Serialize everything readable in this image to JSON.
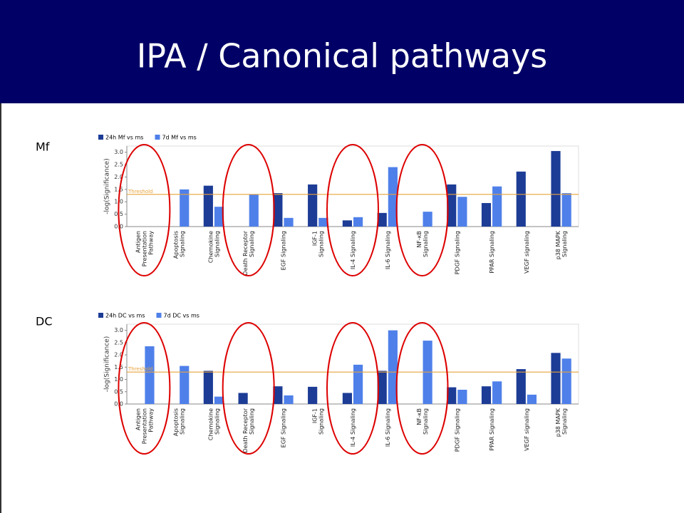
{
  "header": {
    "title": "IPA / Canonical pathways"
  },
  "chart_data": [
    {
      "type": "bar",
      "section_label": "Mf",
      "ylabel": "-log(Significance)",
      "categories": [
        "Antigen Presentation Pathway",
        "Apoptosis Signaling",
        "Chemokine Signaling",
        "Death Receptor Signaling",
        "EGF Signaling",
        "IGF-1 Signaling",
        "IL-4 Signaling",
        "IL-6 Signaling",
        "NF-κB Signaling",
        "PDGF Signaling",
        "PPAR Signaling",
        "VEGF signaling",
        "p38 MAPK Signaling"
      ],
      "series": [
        {
          "name": "24h Mf vs ms",
          "color": "#1c3c96",
          "values": [
            null,
            null,
            1.65,
            null,
            1.35,
            1.7,
            0.25,
            0.55,
            null,
            1.7,
            0.95,
            2.22,
            3.05
          ]
        },
        {
          "name": "7d Mf vs ms",
          "color": "#4f80ea",
          "values": [
            null,
            1.5,
            0.8,
            1.3,
            0.35,
            0.35,
            0.38,
            2.4,
            0.6,
            1.2,
            1.62,
            null,
            1.35
          ]
        }
      ],
      "threshold": 1.3,
      "threshold_label": "Threshold",
      "ylim": [
        0,
        3.25
      ],
      "yticks": [
        {
          "value": 0,
          "label": "0.0"
        },
        0.5,
        {
          "value": 1,
          "label": "1.0"
        },
        1.5,
        {
          "value": 2,
          "label": "2.0"
        },
        2.5,
        {
          "value": 3,
          "label": "3.0"
        }
      ],
      "grid": false
    },
    {
      "type": "bar",
      "section_label": "DC",
      "ylabel": "-log(Significance)",
      "categories": [
        "Antigen Presentation Pathway",
        "Apoptosis Signaling",
        "Chemokine Signaling",
        "Death Receptor Signaling",
        "EGF Signaling",
        "IGF-1 Signaling",
        "IL-4 Signaling",
        "IL-6 Signaling",
        "NF-κB Signaling",
        "PDGF Signaling",
        "PPAR Signaling",
        "VEGF signaling",
        "p38 MAPK Signaling"
      ],
      "series": [
        {
          "name": "24h DC vs ms",
          "color": "#1c3c96",
          "values": [
            null,
            null,
            1.35,
            0.45,
            0.72,
            0.7,
            0.45,
            1.35,
            null,
            0.68,
            0.72,
            1.42,
            2.08
          ]
        },
        {
          "name": "7d DC vs ms",
          "color": "#4f80ea",
          "values": [
            2.35,
            1.55,
            0.3,
            null,
            0.35,
            null,
            1.6,
            3.0,
            2.58,
            0.58,
            0.92,
            0.38,
            1.85
          ]
        }
      ],
      "threshold": 1.3,
      "threshold_label": "Threshold",
      "ylim": [
        0,
        3.25
      ],
      "yticks": [
        {
          "value": 0,
          "label": "0.0"
        },
        0.5,
        {
          "value": 1,
          "label": "1.0"
        },
        1.5,
        {
          "value": 2,
          "label": "2.0"
        },
        2.5,
        {
          "value": 3,
          "label": "3.0"
        }
      ],
      "grid": false
    }
  ]
}
